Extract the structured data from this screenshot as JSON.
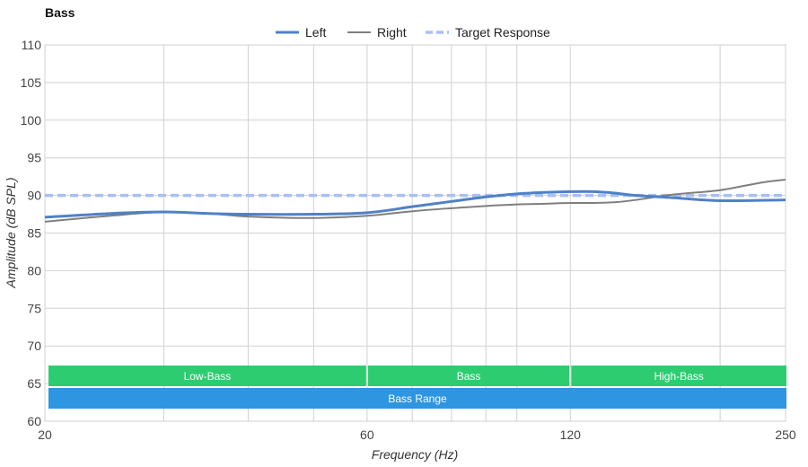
{
  "chart_data": {
    "type": "line",
    "title": "Bass",
    "xlabel": "Frequency (Hz)",
    "ylabel": "Amplitude (dB SPL)",
    "x_scale": "log",
    "xlim": [
      20,
      250
    ],
    "ylim": [
      60,
      110
    ],
    "x_ticks": [
      20,
      60,
      120,
      250
    ],
    "y_ticks": [
      60,
      65,
      70,
      75,
      80,
      85,
      90,
      95,
      100,
      105,
      110
    ],
    "x_gridlines": [
      30,
      40,
      50,
      70,
      80,
      90,
      100,
      200
    ],
    "grid": true,
    "legend_position": "top-center",
    "series": [
      {
        "name": "Left",
        "color": "#4f81c7",
        "style": "solid-thick",
        "x": [
          20,
          25,
          30,
          35,
          40,
          50,
          60,
          70,
          80,
          90,
          100,
          110,
          120,
          130,
          140,
          150,
          170,
          200,
          250
        ],
        "y": [
          87.1,
          87.6,
          87.8,
          87.6,
          87.5,
          87.5,
          87.7,
          88.5,
          89.2,
          89.8,
          90.2,
          90.4,
          90.5,
          90.5,
          90.3,
          90.0,
          89.7,
          89.3,
          89.4
        ]
      },
      {
        "name": "Right",
        "color": "#7f7f7f",
        "style": "solid-thin",
        "x": [
          20,
          25,
          30,
          35,
          40,
          50,
          60,
          70,
          80,
          90,
          100,
          110,
          120,
          130,
          140,
          150,
          170,
          200,
          230,
          250
        ],
        "y": [
          86.5,
          87.3,
          87.8,
          87.6,
          87.2,
          87.0,
          87.3,
          87.9,
          88.3,
          88.6,
          88.8,
          88.9,
          89.0,
          89.0,
          89.1,
          89.4,
          90.1,
          90.7,
          91.7,
          92.1
        ]
      },
      {
        "name": "Target Response",
        "color": "#a8c0f5",
        "style": "dashed",
        "x": [
          20,
          250
        ],
        "y": [
          90,
          90
        ]
      }
    ],
    "bands": [
      {
        "label": "Low-Bass",
        "x0": 20,
        "x1": 60,
        "color": "#2ecc71",
        "row": 1
      },
      {
        "label": "Bass",
        "x0": 60,
        "x1": 120,
        "color": "#2ecc71",
        "row": 1
      },
      {
        "label": "High-Bass",
        "x0": 120,
        "x1": 250,
        "color": "#2ecc71",
        "row": 1
      },
      {
        "label": "Bass Range",
        "x0": 20,
        "x1": 250,
        "color": "#2e95e0",
        "row": 2
      }
    ]
  }
}
